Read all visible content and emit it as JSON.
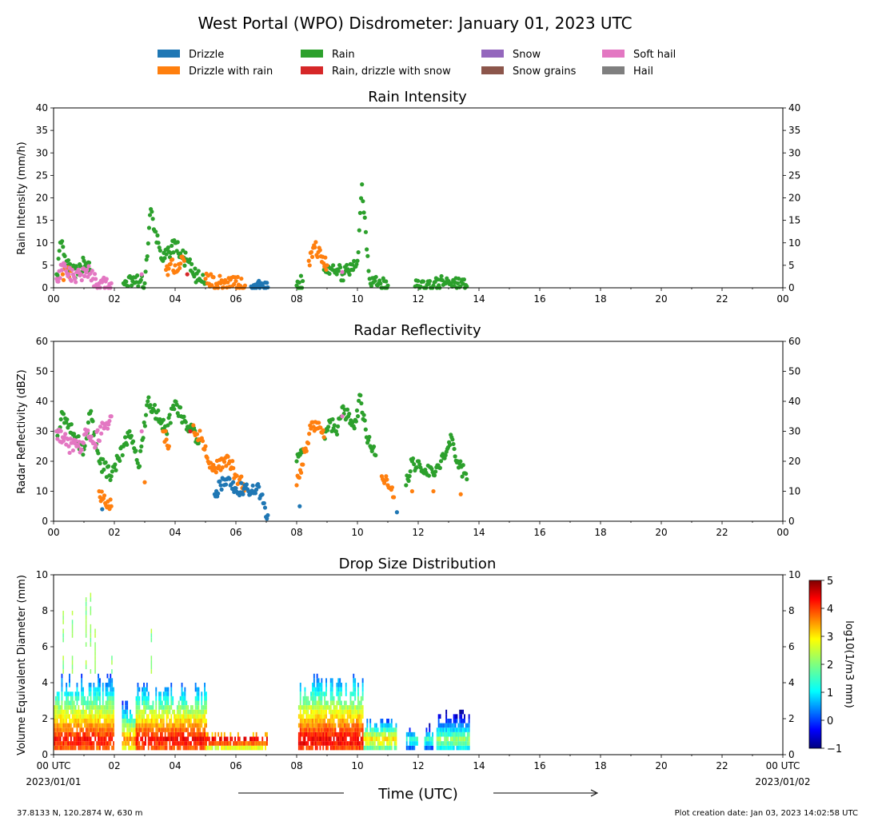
{
  "title": "West Portal (WPO) Disdrometer: January 01, 2023 UTC",
  "legend": [
    {
      "name": "Drizzle",
      "color": "#1f77b4"
    },
    {
      "name": "Drizzle with rain",
      "color": "#ff7f0e"
    },
    {
      "name": "Rain",
      "color": "#2ca02c"
    },
    {
      "name": "Rain, drizzle with snow",
      "color": "#d62728"
    },
    {
      "name": "Snow",
      "color": "#9467bd"
    },
    {
      "name": "Snow grains",
      "color": "#8c564b"
    },
    {
      "name": "Soft hail",
      "color": "#e377c2"
    },
    {
      "name": "Hail",
      "color": "#7f7f7f"
    }
  ],
  "chart_data": [
    {
      "type": "scatter",
      "title": "Rain Intensity",
      "ylabel": "Rain Intensity (mm/h)",
      "xlim": [
        0,
        24
      ],
      "ylim": [
        0,
        40
      ],
      "x_ticks": [
        "00",
        "02",
        "04",
        "06",
        "08",
        "10",
        "12",
        "14",
        "16",
        "18",
        "20",
        "22",
        "00"
      ],
      "y_ticks": [
        "0",
        "5",
        "10",
        "15",
        "20",
        "25",
        "30",
        "35",
        "40"
      ],
      "series": [
        {
          "name": "Rain",
          "color": "#2ca02c",
          "x": [
            0.1,
            0.25,
            0.4,
            0.6,
            0.8,
            1.0,
            1.2,
            2.3,
            2.6,
            3.0,
            3.2,
            3.3,
            3.45,
            3.6,
            3.8,
            4.0,
            4.2,
            4.4,
            4.6,
            4.8,
            5.0,
            8.0,
            8.2,
            8.9,
            9.2,
            9.5,
            9.8,
            10.0,
            10.15,
            10.4,
            10.7,
            11.0,
            11.9,
            12.5,
            13.0,
            13.3,
            13.6
          ],
          "y": [
            3,
            10,
            5,
            4,
            3,
            6,
            4,
            1,
            1.5,
            1,
            17.5,
            13,
            10,
            6,
            8,
            10,
            7,
            6,
            3,
            2,
            1,
            0.5,
            1.5,
            4,
            5,
            3,
            4,
            6,
            23,
            2,
            1,
            0.5,
            0.3,
            0.5,
            1.5,
            1,
            0.3
          ]
        },
        {
          "name": "Drizzle with rain",
          "color": "#ff7f0e",
          "x": [
            0.3,
            0.6,
            3.7,
            4.0,
            4.3,
            5.0,
            5.5,
            6.0,
            6.3,
            8.4,
            8.6,
            8.8,
            9.0
          ],
          "y": [
            3,
            4,
            4,
            5,
            6,
            2,
            1,
            1.5,
            0.5,
            6,
            9,
            7,
            5
          ]
        },
        {
          "name": "Drizzle",
          "color": "#1f77b4",
          "x": [
            6.5,
            6.7,
            6.9,
            7.05
          ],
          "y": [
            0.3,
            0.4,
            0.2,
            0.1
          ]
        },
        {
          "name": "Soft hail",
          "color": "#e377c2",
          "x": [
            0.1,
            0.3,
            0.5,
            0.7,
            0.9,
            1.1,
            1.3,
            1.5,
            1.9,
            2.9,
            9.5
          ],
          "y": [
            2,
            5,
            3,
            2,
            3,
            4,
            2,
            1,
            1,
            3,
            3.5
          ]
        },
        {
          "name": "Rain, drizzle with snow",
          "color": "#d62728",
          "x": [
            4.4
          ],
          "y": [
            3
          ]
        }
      ]
    },
    {
      "type": "scatter",
      "title": "Radar Reflectivity",
      "ylabel": "Radar Reflectivity (dBZ)",
      "xlim": [
        0,
        24
      ],
      "ylim": [
        0,
        60
      ],
      "x_ticks": [
        "00",
        "02",
        "04",
        "06",
        "08",
        "10",
        "12",
        "14",
        "16",
        "18",
        "20",
        "22",
        "00"
      ],
      "y_ticks": [
        "0",
        "10",
        "20",
        "30",
        "40",
        "50",
        "60"
      ],
      "series": [
        {
          "name": "Rain",
          "color": "#2ca02c",
          "x": [
            0.1,
            0.3,
            0.5,
            0.7,
            1.0,
            1.2,
            1.5,
            1.9,
            2.3,
            2.5,
            2.8,
            3.1,
            3.3,
            3.5,
            3.7,
            4.0,
            4.2,
            4.5,
            4.8,
            8.0,
            8.2,
            8.9,
            9.1,
            9.3,
            9.5,
            9.7,
            9.9,
            10.1,
            10.3,
            10.6,
            11.6,
            11.8,
            12.2,
            12.6,
            12.9,
            13.1,
            13.3,
            13.6
          ],
          "y": [
            30,
            36,
            32,
            28,
            24,
            36,
            20,
            15,
            25,
            30,
            18,
            40,
            37,
            34,
            30,
            40,
            35,
            31,
            27,
            20,
            24,
            28,
            33,
            30,
            38,
            35,
            31,
            42,
            28,
            22,
            12,
            20,
            16,
            18,
            22,
            28,
            20,
            14
          ]
        },
        {
          "name": "Drizzle with rain",
          "color": "#ff7f0e",
          "x": [
            1.5,
            1.7,
            1.9,
            3.0,
            3.6,
            3.8,
            4.6,
            5.0,
            5.2,
            5.8,
            6.0,
            6.3,
            8.0,
            8.5,
            8.7,
            8.9,
            10.8,
            11.0,
            11.2,
            11.8,
            12.5,
            13.4
          ],
          "y": [
            10,
            6,
            5,
            13,
            30,
            25,
            32,
            25,
            18,
            20,
            15,
            11,
            12,
            33,
            31,
            28,
            15,
            12,
            8,
            10,
            10,
            9
          ]
        },
        {
          "name": "Drizzle",
          "color": "#1f77b4",
          "x": [
            1.6,
            5.3,
            5.5,
            5.7,
            6.0,
            6.5,
            6.7,
            6.9,
            7.05,
            8.1,
            11.3
          ],
          "y": [
            4,
            9,
            12,
            14,
            11,
            10,
            12,
            6,
            2,
            5,
            3
          ]
        },
        {
          "name": "Soft hail",
          "color": "#e377c2",
          "x": [
            0.1,
            0.3,
            0.5,
            0.7,
            0.9,
            1.1,
            1.3,
            1.9,
            2.9,
            9.5
          ],
          "y": [
            30,
            28,
            25,
            26,
            24,
            30,
            26,
            35,
            30,
            35
          ]
        },
        {
          "name": "Rain, drizzle with snow",
          "color": "#d62728",
          "x": [
            4.5
          ],
          "y": [
            30
          ]
        }
      ]
    },
    {
      "type": "heatmap",
      "title": "Drop Size Distribution",
      "ylabel": "Volume Equivalent Diameter (mm)",
      "xlabel": "Time (UTC)",
      "xlim": [
        0,
        24
      ],
      "ylim": [
        0,
        10
      ],
      "x_ticks": [
        "00 UTC",
        "02",
        "04",
        "06",
        "08",
        "10",
        "12",
        "14",
        "16",
        "18",
        "20",
        "22",
        "00 UTC"
      ],
      "x_tick_sublabels": {
        "first": "2023/01/01",
        "last": "2023/01/02"
      },
      "y_ticks": [
        "0",
        "2",
        "4",
        "6",
        "8",
        "10"
      ],
      "colorbar": {
        "label": "log10(1/m3 mm)",
        "range": [
          -1,
          5
        ],
        "ticks": [
          "−1",
          "0",
          "1",
          "2",
          "3",
          "4",
          "5"
        ]
      },
      "segments": [
        {
          "x0": 0.0,
          "x1": 2.0,
          "dmax": 4.5,
          "peak": 4.2
        },
        {
          "x0": 2.25,
          "x1": 2.7,
          "dmax": 3.0,
          "peak": 3.5
        },
        {
          "x0": 2.7,
          "x1": 5.0,
          "dmax": 4.0,
          "peak": 4.3
        },
        {
          "x0": 5.0,
          "x1": 7.0,
          "dmax": 1.2,
          "peak": 4.5
        },
        {
          "x0": 8.05,
          "x1": 10.2,
          "dmax": 4.5,
          "peak": 4.4
        },
        {
          "x0": 10.2,
          "x1": 11.3,
          "dmax": 2.0,
          "peak": 3.0
        },
        {
          "x0": 11.6,
          "x1": 12.0,
          "dmax": 1.5,
          "peak": 1.8
        },
        {
          "x0": 12.2,
          "x1": 12.5,
          "dmax": 1.6,
          "peak": 1.8
        },
        {
          "x0": 12.6,
          "x1": 13.7,
          "dmax": 2.5,
          "peak": 2.2
        }
      ]
    }
  ],
  "footer": {
    "location": "37.8133 N, 120.2874 W, 630 m",
    "created": "Plot creation date: Jan 03, 2023 14:02:58 UTC"
  }
}
